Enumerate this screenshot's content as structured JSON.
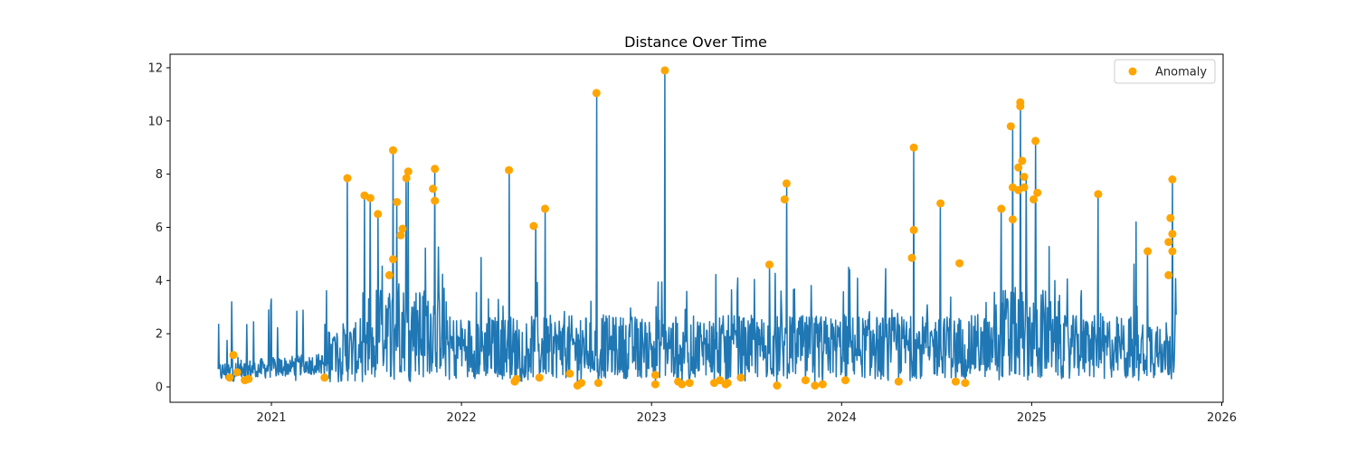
{
  "chart_data": {
    "type": "line",
    "title": "Distance Over Time",
    "xlabel": "",
    "ylabel": "",
    "x_range": [
      2020.45,
      2026.0
    ],
    "ylim": [
      -0.6,
      12.5
    ],
    "grid": false,
    "legend_position": "upper right",
    "x_ticks": [
      "2021",
      "2022",
      "2023",
      "2024",
      "2025",
      "2026"
    ],
    "y_ticks": [
      "0",
      "2",
      "4",
      "6",
      "8",
      "10",
      "12"
    ],
    "series": [
      {
        "name": "Distance",
        "style": "line",
        "color": "#1f77b4",
        "x_start": 2020.72,
        "x_end": 2025.76,
        "description": "daily noisy series; baseline ~0.5-1 in late 2020, rising to ~1-3 from mid-2021 onward with frequent spikes",
        "spikes": [
          {
            "x": 2020.79,
            "y": 3.2
          },
          {
            "x": 2021.0,
            "y": 3.3
          },
          {
            "x": 2021.4,
            "y": 7.9
          },
          {
            "x": 2021.49,
            "y": 7.2
          },
          {
            "x": 2021.52,
            "y": 7.1
          },
          {
            "x": 2021.56,
            "y": 6.5
          },
          {
            "x": 2021.64,
            "y": 8.9
          },
          {
            "x": 2021.66,
            "y": 7.0
          },
          {
            "x": 2021.71,
            "y": 7.9
          },
          {
            "x": 2021.72,
            "y": 8.1
          },
          {
            "x": 2021.86,
            "y": 8.2
          },
          {
            "x": 2022.25,
            "y": 8.1
          },
          {
            "x": 2022.39,
            "y": 6.1
          },
          {
            "x": 2022.44,
            "y": 6.7
          },
          {
            "x": 2022.71,
            "y": 11.0
          },
          {
            "x": 2023.07,
            "y": 11.9
          },
          {
            "x": 2023.62,
            "y": 4.6
          },
          {
            "x": 2023.71,
            "y": 7.6
          },
          {
            "x": 2024.38,
            "y": 9.0
          },
          {
            "x": 2024.52,
            "y": 6.9
          },
          {
            "x": 2024.84,
            "y": 6.7
          },
          {
            "x": 2024.9,
            "y": 9.8
          },
          {
            "x": 2024.94,
            "y": 10.7
          },
          {
            "x": 2024.97,
            "y": 7.9
          },
          {
            "x": 2025.02,
            "y": 9.2
          },
          {
            "x": 2025.35,
            "y": 7.3
          },
          {
            "x": 2025.55,
            "y": 6.2
          },
          {
            "x": 2025.61,
            "y": 5.1
          },
          {
            "x": 2025.74,
            "y": 7.8
          }
        ]
      },
      {
        "name": "Anomaly",
        "style": "scatter",
        "color": "#ffa500",
        "points": [
          {
            "x": 2020.78,
            "y": 0.35
          },
          {
            "x": 2020.8,
            "y": 1.2
          },
          {
            "x": 2020.82,
            "y": 0.55
          },
          {
            "x": 2020.86,
            "y": 0.25
          },
          {
            "x": 2020.88,
            "y": 0.3
          },
          {
            "x": 2021.28,
            "y": 0.35
          },
          {
            "x": 2021.4,
            "y": 7.85
          },
          {
            "x": 2021.49,
            "y": 7.2
          },
          {
            "x": 2021.52,
            "y": 7.1
          },
          {
            "x": 2021.56,
            "y": 6.5
          },
          {
            "x": 2021.62,
            "y": 4.2
          },
          {
            "x": 2021.64,
            "y": 4.8
          },
          {
            "x": 2021.64,
            "y": 8.9
          },
          {
            "x": 2021.66,
            "y": 6.95
          },
          {
            "x": 2021.69,
            "y": 5.95
          },
          {
            "x": 2021.68,
            "y": 5.7
          },
          {
            "x": 2021.71,
            "y": 7.85
          },
          {
            "x": 2021.72,
            "y": 8.1
          },
          {
            "x": 2021.85,
            "y": 7.45
          },
          {
            "x": 2021.86,
            "y": 7.0
          },
          {
            "x": 2021.86,
            "y": 8.2
          },
          {
            "x": 2022.25,
            "y": 8.15
          },
          {
            "x": 2022.28,
            "y": 0.2
          },
          {
            "x": 2022.29,
            "y": 0.3
          },
          {
            "x": 2022.38,
            "y": 6.05
          },
          {
            "x": 2022.41,
            "y": 0.35
          },
          {
            "x": 2022.44,
            "y": 6.7
          },
          {
            "x": 2022.57,
            "y": 0.5
          },
          {
            "x": 2022.61,
            "y": 0.05
          },
          {
            "x": 2022.63,
            "y": 0.15
          },
          {
            "x": 2022.71,
            "y": 11.05
          },
          {
            "x": 2022.72,
            "y": 0.15
          },
          {
            "x": 2023.02,
            "y": 0.45
          },
          {
            "x": 2023.02,
            "y": 0.1
          },
          {
            "x": 2023.07,
            "y": 11.9
          },
          {
            "x": 2023.14,
            "y": 0.2
          },
          {
            "x": 2023.16,
            "y": 0.1
          },
          {
            "x": 2023.2,
            "y": 0.15
          },
          {
            "x": 2023.33,
            "y": 0.15
          },
          {
            "x": 2023.36,
            "y": 0.25
          },
          {
            "x": 2023.39,
            "y": 0.1
          },
          {
            "x": 2023.4,
            "y": 0.15
          },
          {
            "x": 2023.47,
            "y": 0.35
          },
          {
            "x": 2023.62,
            "y": 4.6
          },
          {
            "x": 2023.66,
            "y": 0.05
          },
          {
            "x": 2023.7,
            "y": 7.05
          },
          {
            "x": 2023.71,
            "y": 7.65
          },
          {
            "x": 2023.81,
            "y": 0.25
          },
          {
            "x": 2023.86,
            "y": 0.05
          },
          {
            "x": 2023.9,
            "y": 0.1
          },
          {
            "x": 2024.02,
            "y": 0.25
          },
          {
            "x": 2024.3,
            "y": 0.2
          },
          {
            "x": 2024.37,
            "y": 4.85
          },
          {
            "x": 2024.38,
            "y": 5.9
          },
          {
            "x": 2024.38,
            "y": 9.0
          },
          {
            "x": 2024.52,
            "y": 6.9
          },
          {
            "x": 2024.6,
            "y": 0.2
          },
          {
            "x": 2024.62,
            "y": 4.65
          },
          {
            "x": 2024.65,
            "y": 0.15
          },
          {
            "x": 2024.84,
            "y": 6.7
          },
          {
            "x": 2024.89,
            "y": 9.8
          },
          {
            "x": 2024.9,
            "y": 7.5
          },
          {
            "x": 2024.9,
            "y": 6.3
          },
          {
            "x": 2024.93,
            "y": 7.4
          },
          {
            "x": 2024.93,
            "y": 8.25
          },
          {
            "x": 2024.94,
            "y": 10.55
          },
          {
            "x": 2024.94,
            "y": 10.7
          },
          {
            "x": 2024.95,
            "y": 8.5
          },
          {
            "x": 2024.96,
            "y": 7.9
          },
          {
            "x": 2024.96,
            "y": 7.5
          },
          {
            "x": 2025.01,
            "y": 7.05
          },
          {
            "x": 2025.02,
            "y": 9.25
          },
          {
            "x": 2025.03,
            "y": 7.3
          },
          {
            "x": 2025.35,
            "y": 7.25
          },
          {
            "x": 2025.61,
            "y": 5.1
          },
          {
            "x": 2025.72,
            "y": 5.45
          },
          {
            "x": 2025.72,
            "y": 4.2
          },
          {
            "x": 2025.73,
            "y": 6.35
          },
          {
            "x": 2025.74,
            "y": 5.75
          },
          {
            "x": 2025.74,
            "y": 5.1
          },
          {
            "x": 2025.74,
            "y": 7.8
          }
        ]
      }
    ],
    "legend": [
      {
        "label": "Anomaly",
        "marker": "circle",
        "color": "#ffa500"
      }
    ]
  },
  "colors": {
    "line": "#1f77b4",
    "anomaly": "#ffa500",
    "axis": "#000000",
    "text": "#262626"
  }
}
